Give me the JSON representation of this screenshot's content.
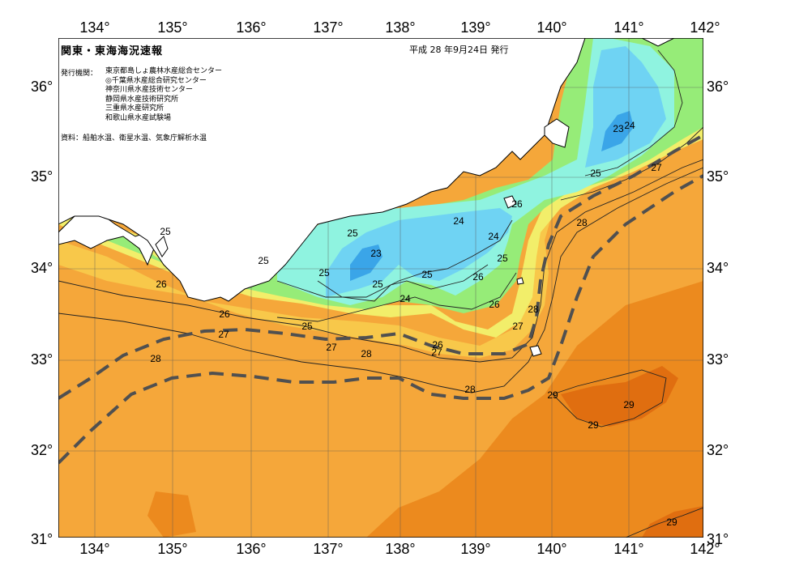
{
  "header": {
    "title": "関東・東海海況速報",
    "date": "平成 28 年9月24日 発行",
    "issuer_label": "発行機関：",
    "issuers": [
      "東京都島しょ農林水産総合センター",
      "◎千葉県水産総合研究センター",
      "神奈川県水産技術センター",
      "静岡県水産技術研究所",
      "三重県水産研究所",
      "和歌山県水産試験場"
    ],
    "source": "資料：船舶水温、衛星水温、気象庁解析水温"
  },
  "axes": {
    "lon_labels": [
      "134°",
      "135°",
      "136°",
      "137°",
      "138°",
      "139°",
      "140°",
      "141°",
      "142°"
    ],
    "lat_labels": [
      "36°",
      "35°",
      "34°",
      "33°",
      "32°",
      "31°"
    ]
  },
  "contour_labels": [
    "25",
    "25",
    "26",
    "26",
    "27",
    "28",
    "25",
    "27",
    "28",
    "25",
    "24",
    "23",
    "25",
    "24",
    "25",
    "27",
    "26",
    "26",
    "25",
    "24",
    "25",
    "26",
    "26",
    "27",
    "28",
    "28",
    "23",
    "24",
    "25",
    "27",
    "28",
    "29",
    "29",
    "29",
    "29"
  ],
  "colors": {
    "land": "#ffffff",
    "t23": "#3aa5e8",
    "t24": "#6fd3f3",
    "t25": "#8ff3e0",
    "t26": "#96ec78",
    "t27": "#f2ee6a",
    "t27b": "#f8c84a",
    "t28": "#f5a73a",
    "t29": "#ec8a1e",
    "t30": "#e06e10",
    "kuroshio": "#505050"
  }
}
